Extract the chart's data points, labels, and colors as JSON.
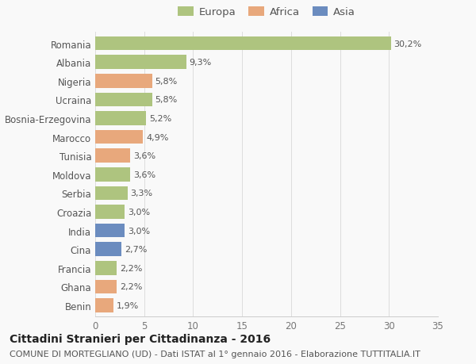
{
  "categories": [
    "Romania",
    "Albania",
    "Nigeria",
    "Ucraina",
    "Bosnia-Erzegovina",
    "Marocco",
    "Tunisia",
    "Moldova",
    "Serbia",
    "Croazia",
    "India",
    "Cina",
    "Francia",
    "Ghana",
    "Benin"
  ],
  "values": [
    30.2,
    9.3,
    5.8,
    5.8,
    5.2,
    4.9,
    3.6,
    3.6,
    3.3,
    3.0,
    3.0,
    2.7,
    2.2,
    2.2,
    1.9
  ],
  "labels": [
    "30,2%",
    "9,3%",
    "5,8%",
    "5,8%",
    "5,2%",
    "4,9%",
    "3,6%",
    "3,6%",
    "3,3%",
    "3,0%",
    "3,0%",
    "2,7%",
    "2,2%",
    "2,2%",
    "1,9%"
  ],
  "continents": [
    "Europa",
    "Europa",
    "Africa",
    "Europa",
    "Europa",
    "Africa",
    "Africa",
    "Europa",
    "Europa",
    "Europa",
    "Asia",
    "Asia",
    "Europa",
    "Africa",
    "Africa"
  ],
  "colors": {
    "Europa": "#aec47f",
    "Africa": "#e8a87c",
    "Asia": "#6b8cbf"
  },
  "legend_labels": [
    "Europa",
    "Africa",
    "Asia"
  ],
  "legend_colors": [
    "#aec47f",
    "#e8a87c",
    "#6b8cbf"
  ],
  "xlim": [
    0,
    35
  ],
  "xticks": [
    0,
    5,
    10,
    15,
    20,
    25,
    30,
    35
  ],
  "title": "Cittadini Stranieri per Cittadinanza - 2016",
  "subtitle": "COMUNE DI MORTEGLIANO (UD) - Dati ISTAT al 1° gennaio 2016 - Elaborazione TUTTITALIA.IT",
  "bg_color": "#f9f9f9",
  "bar_height": 0.75,
  "title_fontsize": 10,
  "subtitle_fontsize": 8,
  "label_fontsize": 8,
  "tick_fontsize": 8.5,
  "legend_fontsize": 9.5
}
